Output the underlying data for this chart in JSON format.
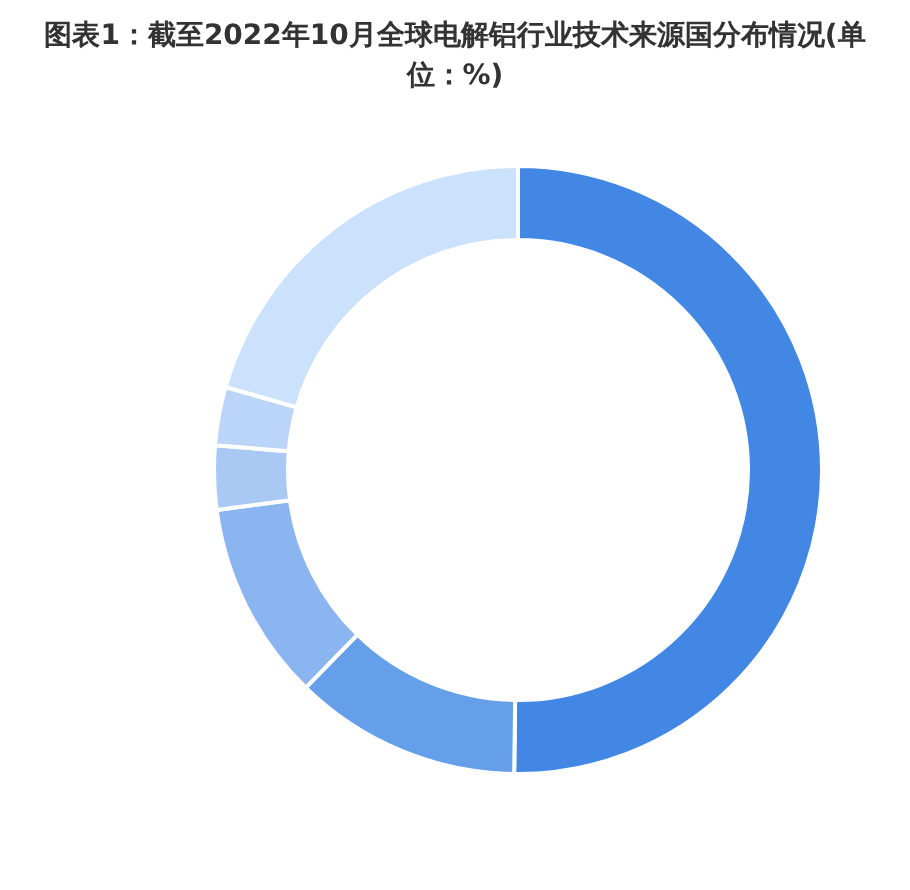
{
  "chart_data": {
    "type": "donut",
    "title": "图表1：截至2022年10月全球电解铝行业技术来源国分布情况(单位：%)",
    "categories": [
      null,
      null,
      null,
      null,
      null,
      null
    ],
    "values": [
      50.2,
      12.1,
      10.6,
      3.4,
      3.1,
      20.6
    ],
    "colors": [
      "#4287e3",
      "#659ee9",
      "#8bb5f0",
      "#a9c9f4",
      "#bad5f7",
      "#cce1fb"
    ]
  }
}
